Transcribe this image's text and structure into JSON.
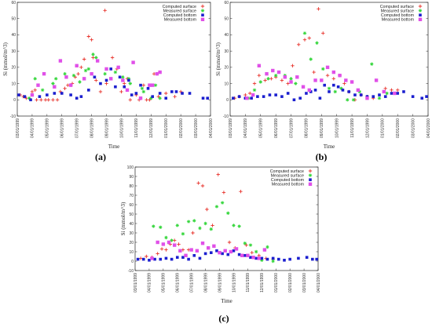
{
  "colors": {
    "computed_surface": "#e8322b",
    "measured_surface": "#33d63a",
    "computed_bottom": "#1b1fcf",
    "measured_bottom": "#e050e8"
  },
  "chart_data": [
    {
      "panel": "(a)",
      "type": "scatter",
      "xlabel": "Time",
      "ylabel": "Si (mmol/m^3)",
      "ylim": [
        -10,
        60
      ],
      "yticks": [
        -10,
        0,
        10,
        20,
        30,
        40,
        50,
        60
      ],
      "x_ticks": [
        "03/01/1999",
        "04/01/1999",
        "05/01/1999",
        "06/01/1999",
        "07/01/1999",
        "08/01/1999",
        "09/01/1999",
        "10/01/1999",
        "11/01/1999",
        "12/01/1999",
        "01/01/2000",
        "02/01/2000",
        "03/01/2000",
        "04/01/2000"
      ],
      "xlim": [
        0,
        13
      ],
      "legend_position": "top-right",
      "series": [
        {
          "name": "Computed surface",
          "marker": "plus",
          "color_key": "computed_surface",
          "x": [
            0.2,
            0.4,
            0.6,
            1.0,
            1.2,
            1.3,
            1.6,
            1.9,
            2.1,
            2.4,
            2.7,
            2.9,
            3.2,
            3.4,
            3.7,
            3.9,
            4.1,
            4.3,
            4.5,
            4.8,
            5.0,
            5.1,
            5.3,
            5.6,
            5.9,
            6.0,
            6.4,
            6.7,
            7.0,
            7.2,
            7.4,
            7.6,
            8.0,
            8.2,
            8.5,
            8.7,
            8.9,
            9.2,
            9.5,
            10.0,
            10.6,
            11.0
          ],
          "y": [
            3,
            2,
            1,
            5,
            6,
            0,
            0,
            0,
            0,
            0,
            0,
            5,
            7,
            9,
            10,
            14,
            16,
            20,
            25,
            39,
            37,
            26,
            12,
            5,
            55,
            10,
            26,
            19,
            5,
            10,
            13,
            0,
            3,
            0,
            9,
            0,
            0,
            16,
            2,
            4,
            2,
            5
          ]
        },
        {
          "name": "Measured surface",
          "marker": "star",
          "color_key": "measured_surface",
          "x": [
            0.8,
            1.2,
            1.7,
            2.4,
            2.6,
            3.2,
            3.8,
            4.2,
            4.6,
            4.8,
            5.1,
            5.3,
            5.9,
            6.6,
            7.1,
            7.5,
            7.6,
            8.4,
            8.5,
            9.0,
            9.3,
            9.6
          ],
          "y": [
            1,
            13,
            6,
            10,
            13,
            16,
            15,
            11,
            18,
            19,
            28,
            26,
            16,
            17,
            14,
            13,
            10,
            7,
            5,
            1,
            9,
            1
          ]
        },
        {
          "name": "Computed bottom",
          "marker": "square",
          "color_key": "computed_bottom",
          "x": [
            0.1,
            0.5,
            0.9,
            1.5,
            2.0,
            2.5,
            3.0,
            3.6,
            4.0,
            4.3,
            4.8,
            5.2,
            5.6,
            6.0,
            6.3,
            6.6,
            6.9,
            7.2,
            7.5,
            7.7,
            8.0,
            8.3,
            8.8,
            9.1,
            9.6,
            10.0,
            10.4,
            10.7,
            11.1,
            11.6,
            12.5,
            12.8
          ],
          "y": [
            3,
            2,
            0,
            2,
            3,
            4,
            4,
            3,
            1,
            2,
            6,
            14,
            10,
            12,
            19,
            8,
            14,
            8,
            12,
            3,
            4,
            9,
            7,
            2,
            4,
            1,
            5,
            5,
            4,
            4,
            1,
            1
          ]
        },
        {
          "name": "Measured bottom",
          "marker": "filled-square",
          "color_key": "measured_bottom",
          "x": [
            1.0,
            1.4,
            1.8,
            2.5,
            2.9,
            3.3,
            3.6,
            4.0,
            4.5,
            5.0,
            5.4,
            6.0,
            6.3,
            6.8,
            7.1,
            7.4,
            7.8,
            8.3,
            8.9,
            9.1,
            9.4,
            9.6
          ],
          "y": [
            3,
            9,
            16,
            8,
            24,
            14,
            9,
            21,
            13,
            16,
            24,
            19,
            13,
            20,
            12,
            6,
            23,
            1,
            9,
            9,
            16,
            17
          ]
        }
      ]
    },
    {
      "panel": "(b)",
      "type": "scatter",
      "xlabel": "Time",
      "ylabel": "Si (mmol/m^3)",
      "ylim": [
        -10,
        60
      ],
      "yticks": [
        -10,
        0,
        10,
        20,
        30,
        40,
        50,
        60
      ],
      "x_ticks": [
        "03/01/1999",
        "04/01/1999",
        "05/01/1999",
        "06/01/1999",
        "07/01/1999",
        "08/01/1999",
        "09/01/1999",
        "10/01/1999",
        "11/01/1999",
        "12/01/1999",
        "01/01/2000",
        "02/01/2000",
        "03/01/2000",
        "04/01/2000"
      ],
      "xlim": [
        0,
        13
      ],
      "legend_position": "top-right",
      "series": [
        {
          "name": "Computed surface",
          "marker": "plus",
          "color_key": "computed_surface",
          "x": [
            0.3,
            0.6,
            1.0,
            1.3,
            1.6,
            1.9,
            2.3,
            2.7,
            3.0,
            3.4,
            3.8,
            4.1,
            4.5,
            4.9,
            5.2,
            5.5,
            5.8,
            6.1,
            6.4,
            6.8,
            7.2,
            7.5,
            7.8,
            8.2,
            8.6,
            9.0,
            9.4,
            10.2,
            10.6,
            11.0
          ],
          "y": [
            1,
            2,
            3,
            4,
            10,
            15,
            12,
            13,
            14,
            12,
            10,
            21,
            34,
            37,
            38,
            17,
            56,
            41,
            15,
            13,
            15,
            10,
            5,
            0,
            3,
            2,
            1,
            7,
            6,
            6
          ]
        },
        {
          "name": "Measured surface",
          "marker": "star",
          "color_key": "measured_surface",
          "x": [
            1.2,
            1.6,
            2.0,
            2.5,
            3.0,
            3.6,
            4.0,
            4.3,
            4.9,
            5.3,
            5.7,
            6.1,
            6.5,
            6.9,
            7.3,
            7.7,
            8.1,
            8.5,
            9.3,
            9.8,
            10.3
          ],
          "y": [
            1,
            6,
            11,
            13,
            15,
            15,
            13,
            10,
            41,
            25,
            35,
            19,
            7,
            5,
            7,
            0,
            0,
            5,
            22,
            1,
            4
          ]
        },
        {
          "name": "Computed bottom",
          "marker": "square",
          "color_key": "computed_bottom",
          "x": [
            0.2,
            0.6,
            1.0,
            1.4,
            1.8,
            2.2,
            2.6,
            3.0,
            3.4,
            3.8,
            4.2,
            4.6,
            5.0,
            5.3,
            5.6,
            5.9,
            6.2,
            6.5,
            6.8,
            7.1,
            7.4,
            7.8,
            8.2,
            8.6,
            9.0,
            9.4,
            9.8,
            10.2,
            10.6,
            11.0,
            11.4,
            12.0,
            12.6,
            12.9
          ],
          "y": [
            1,
            2,
            1,
            1,
            2,
            2,
            3,
            3,
            2,
            4,
            0,
            1,
            4,
            5,
            6,
            1,
            9,
            5,
            9,
            8,
            6,
            5,
            3,
            3,
            2,
            2,
            3,
            2,
            4,
            4,
            5,
            2,
            1,
            2
          ]
        },
        {
          "name": "Measured bottom",
          "marker": "filled-square",
          "color_key": "measured_bottom",
          "x": [
            1.1,
            1.5,
            1.9,
            2.4,
            2.8,
            3.2,
            3.6,
            4.0,
            4.4,
            4.8,
            5.2,
            5.6,
            6.0,
            6.4,
            6.8,
            7.2,
            7.6,
            8.0,
            8.4,
            9.0,
            9.6,
            10.1,
            10.8
          ],
          "y": [
            1,
            3,
            21,
            16,
            18,
            17,
            14,
            11,
            14,
            8,
            6,
            12,
            12,
            20,
            17,
            15,
            12,
            11,
            6,
            1,
            12,
            5,
            4
          ]
        }
      ]
    },
    {
      "panel": "(c)",
      "type": "scatter",
      "xlabel": "Time",
      "ylabel": "Si (mmol/m^3)",
      "ylim": [
        -10,
        100
      ],
      "yticks": [
        -10,
        0,
        10,
        20,
        30,
        40,
        50,
        60,
        70,
        80,
        90,
        100
      ],
      "x_ticks": [
        "03/01/1999",
        "04/01/1999",
        "05/01/1999",
        "06/01/1999",
        "07/01/1999",
        "08/01/1999",
        "09/01/1999",
        "10/01/1999",
        "11/01/1999",
        "12/01/1999",
        "01/01/2000",
        "02/01/2000",
        "03/01/2000",
        "04/01/2000"
      ],
      "xlim": [
        0,
        13
      ],
      "legend_position": "top-right",
      "series": [
        {
          "name": "Computed surface",
          "marker": "plus",
          "color_key": "computed_surface",
          "x": [
            0.4,
            0.8,
            1.2,
            1.6,
            1.9,
            2.2,
            2.5,
            2.8,
            3.1,
            3.4,
            3.8,
            4.1,
            4.5,
            4.8,
            5.1,
            5.5,
            5.9,
            6.3,
            6.7,
            7.1,
            7.5,
            7.9,
            8.3,
            8.8,
            9.3,
            9.8
          ],
          "y": [
            3,
            5,
            4,
            8,
            13,
            12,
            18,
            22,
            18,
            12,
            12,
            30,
            83,
            80,
            55,
            38,
            92,
            73,
            20,
            14,
            74,
            17,
            9,
            6,
            3,
            2
          ]
        },
        {
          "name": "Measured surface",
          "marker": "star",
          "color_key": "measured_surface",
          "x": [
            1.3,
            1.8,
            2.2,
            2.6,
            3.0,
            3.4,
            3.8,
            4.2,
            4.6,
            5.0,
            5.4,
            5.8,
            6.2,
            6.6,
            7.0,
            7.4,
            7.8,
            8.2,
            8.6,
            9.0,
            9.4,
            9.8
          ],
          "y": [
            37,
            36,
            25,
            22,
            38,
            29,
            42,
            43,
            35,
            40,
            34,
            58,
            62,
            51,
            38,
            37,
            19,
            17,
            10,
            1,
            15,
            0
          ]
        },
        {
          "name": "Computed bottom",
          "marker": "square",
          "color_key": "computed_bottom",
          "x": [
            0.2,
            0.6,
            1.0,
            1.4,
            1.8,
            2.2,
            2.6,
            3.0,
            3.4,
            3.8,
            4.2,
            4.6,
            5.0,
            5.4,
            5.8,
            6.2,
            6.6,
            7.0,
            7.4,
            7.8,
            8.2,
            8.6,
            9.0,
            9.4,
            9.8,
            10.2,
            10.6,
            11.0,
            11.6,
            12.2,
            12.6,
            12.9
          ],
          "y": [
            2,
            2,
            1,
            2,
            2,
            3,
            2,
            4,
            4,
            2,
            6,
            3,
            8,
            9,
            11,
            8,
            7,
            11,
            7,
            6,
            4,
            3,
            3,
            2,
            3,
            2,
            1,
            2,
            3,
            4,
            2,
            2
          ]
        },
        {
          "name": "Measured bottom",
          "marker": "filled-square",
          "color_key": "measured_bottom",
          "x": [
            1.2,
            1.6,
            2.0,
            2.4,
            2.8,
            3.2,
            3.6,
            4.0,
            4.4,
            4.8,
            5.2,
            5.6,
            6.0,
            6.4,
            6.8,
            7.2,
            7.6,
            8.0,
            8.4,
            8.8,
            9.2
          ],
          "y": [
            3,
            20,
            18,
            20,
            17,
            11,
            6,
            12,
            11,
            19,
            14,
            16,
            9,
            11,
            10,
            13,
            6,
            6,
            4,
            3,
            12
          ]
        }
      ]
    }
  ]
}
